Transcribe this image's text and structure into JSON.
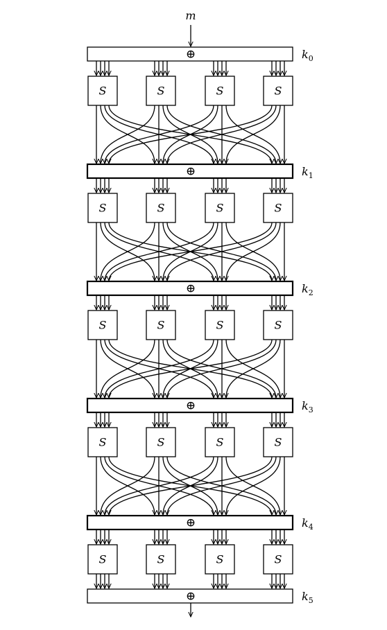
{
  "diagram": {
    "input_label": "m",
    "sbox_label": "S",
    "xor_symbol": "⊕",
    "key_labels": [
      {
        "base": "k",
        "sub": "0"
      },
      {
        "base": "k",
        "sub": "1"
      },
      {
        "base": "k",
        "sub": "2"
      },
      {
        "base": "k",
        "sub": "3"
      },
      {
        "base": "k",
        "sub": "4"
      },
      {
        "base": "k",
        "sub": "5"
      }
    ],
    "rounds_with_permutation": 4,
    "sboxes_per_round": 4,
    "bits_per_sbox": 4,
    "colors": {
      "stroke": "#000000",
      "background": "#ffffff"
    }
  }
}
